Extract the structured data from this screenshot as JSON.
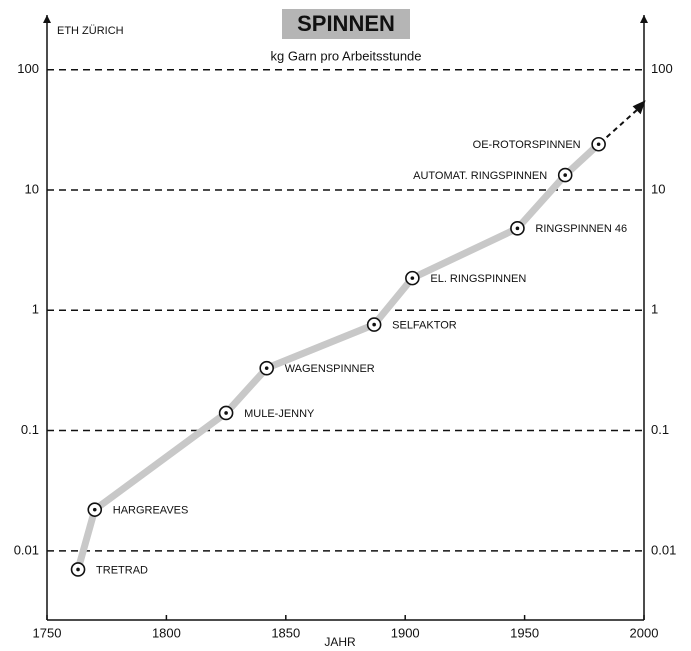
{
  "chart_data": {
    "type": "line",
    "title": "SPINNEN",
    "subtitle": "kg Garn pro Arbeitsstunde",
    "source": "ETH ZÜRICH",
    "x_label": "JAHR",
    "x": [
      1763,
      1770,
      1825,
      1842,
      1887,
      1903,
      1947,
      1967,
      1981
    ],
    "values": [
      0.007,
      0.022,
      0.14,
      0.33,
      0.76,
      1.85,
      4.8,
      13.3,
      24
    ],
    "point_labels": [
      "TRETRAD",
      "HARGREAVES",
      "MULE-JENNY",
      "WAGENSPINNER",
      "SELFAKTOR",
      "EL. RINGSPINNEN",
      "RINGSPINNEN 46",
      "AUTOMAT. RINGSPINNEN",
      "OE-ROTORSPINNEN"
    ],
    "color": "#c8c8c8",
    "xlim": [
      1750,
      2000
    ],
    "xticks": [
      1750,
      1800,
      1850,
      1900,
      1950,
      2000
    ],
    "ylim": [
      0.00266,
      285
    ],
    "yticks": [
      0.01,
      0.1,
      1,
      10,
      100
    ],
    "log_y": true,
    "grid": true
  }
}
